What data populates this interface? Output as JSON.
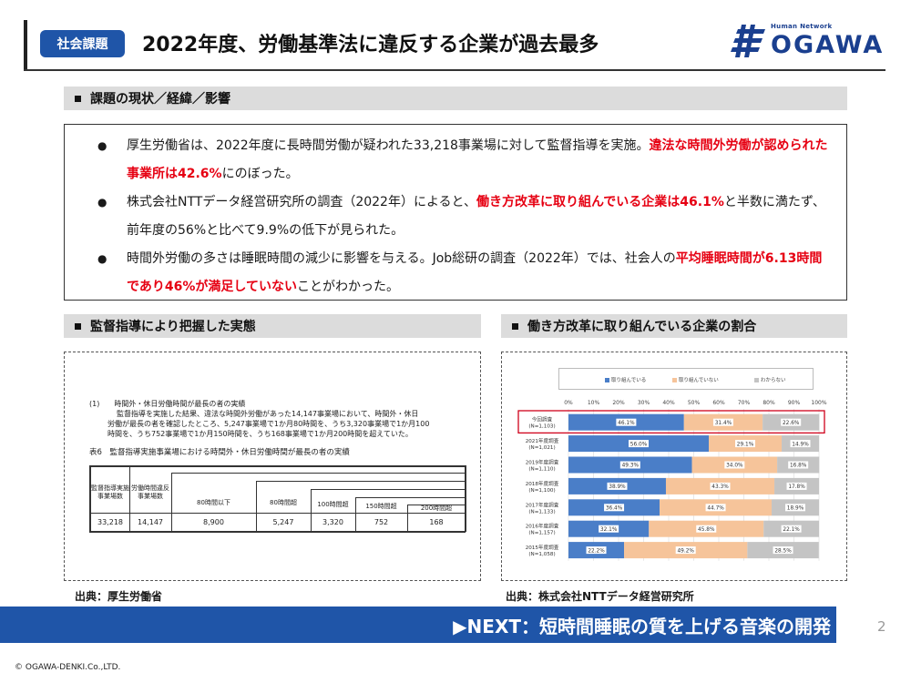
{
  "header": {
    "badge": "社会課題",
    "title": "2022年度、労働基準法に違反する企業が過去最多",
    "logo_small": "Human Network",
    "logo_text": "OGAWA"
  },
  "section1": {
    "title": "課題の現状／経緯／影響",
    "bullets": [
      {
        "pre": "厚生労働省は、2022年度に長時間労働が疑われた33,218事業場に対して監督指導を実施。",
        "red": "違法な時間外労働が認められた事業所は42.6%",
        "post": "にのぼった。"
      },
      {
        "pre": "株式会社NTTデータ経営研究所の調査（2022年）によると、",
        "red": "働き方改革に取り組んでいる企業は46.1%",
        "post": "と半数に満たず、前年度の56%と比べて9.9%の低下が見られた。"
      },
      {
        "pre": "時間外労働の多さは睡眠時間の減少に影響を与える。Job総研の調査（2022年）では、社会人の",
        "red": "平均睡眠時間が6.13時間であり46%が満足していない",
        "post": "ことがわかった。"
      }
    ]
  },
  "section2": {
    "title": "監督指導により把握した実態",
    "doc_lines": [
      "(1)　　時間外・休日労働時間が最長の者の実績",
      "監督指導を実施した結果、違法な時間外労働があった14,147事業場において、時間外・休日",
      "労働が最長の者を確認したところ、5,247事業場で1か月80時間を、うち3,320事業場で1か月100",
      "時間を、うち752事業場で1か月150時間を、うち168事業場で1か月200時間を超えていた。"
    ],
    "table_caption": "表6　監督指導実施事業場における時間外・休日労働時間が最長の者の実績",
    "table_headers": [
      "監督指導実施事業場数",
      "労働時間違反事業場数",
      "80時間以下",
      "80時間超",
      "100時間超",
      "150時間超",
      "200時間超"
    ],
    "table_values": [
      "33,218",
      "14,147",
      "8,900",
      "5,247",
      "3,320",
      "752",
      "168"
    ],
    "source": "出典：厚生労働省"
  },
  "section3": {
    "title": "働き方改革に取り組んでいる企業の割合",
    "source": "出典：株式会社NTTデータ経営研究所"
  },
  "chart_data": {
    "type": "bar",
    "orientation": "horizontal",
    "stacked": true,
    "xlim": [
      0,
      100
    ],
    "xticks": [
      "0%",
      "10%",
      "20%",
      "30%",
      "40%",
      "50%",
      "60%",
      "70%",
      "80%",
      "90%",
      "100%"
    ],
    "legend": [
      "取り組んでいる",
      "取り組んでいない",
      "わからない"
    ],
    "legend_position": "top",
    "colors": [
      "#4a7ec8",
      "#f6c49a",
      "#c4c4c4"
    ],
    "highlight_color": "#d0021b",
    "categories": [
      {
        "line1": "今回調査",
        "line2": "(N=1,103)",
        "highlight": true
      },
      {
        "line1": "2021年度調査",
        "line2": "(N=1,021)"
      },
      {
        "line1": "2019年度調査",
        "line2": "(N=1,110)"
      },
      {
        "line1": "2018年度調査",
        "line2": "(N=1,100)"
      },
      {
        "line1": "2017年度調査",
        "line2": "(N=1,133)"
      },
      {
        "line1": "2016年度調査",
        "line2": "(N=1,157)"
      },
      {
        "line1": "2015年度調査",
        "line2": "(N=1,058)"
      }
    ],
    "series": [
      {
        "name": "取り組んでいる",
        "values": [
          46.1,
          56.0,
          49.3,
          38.9,
          36.4,
          32.1,
          22.2
        ]
      },
      {
        "name": "取り組んでいない",
        "values": [
          31.4,
          29.1,
          34.0,
          43.3,
          44.7,
          45.8,
          49.2
        ]
      },
      {
        "name": "わからない",
        "values": [
          22.6,
          14.9,
          16.8,
          17.8,
          18.9,
          22.1,
          28.5
        ]
      }
    ]
  },
  "footer": {
    "next": "▶NEXT：短時間睡眠の質を上げる音楽の開発",
    "page": "2",
    "copyright": "© OGAWA-DENKI.Co.,LTD."
  }
}
